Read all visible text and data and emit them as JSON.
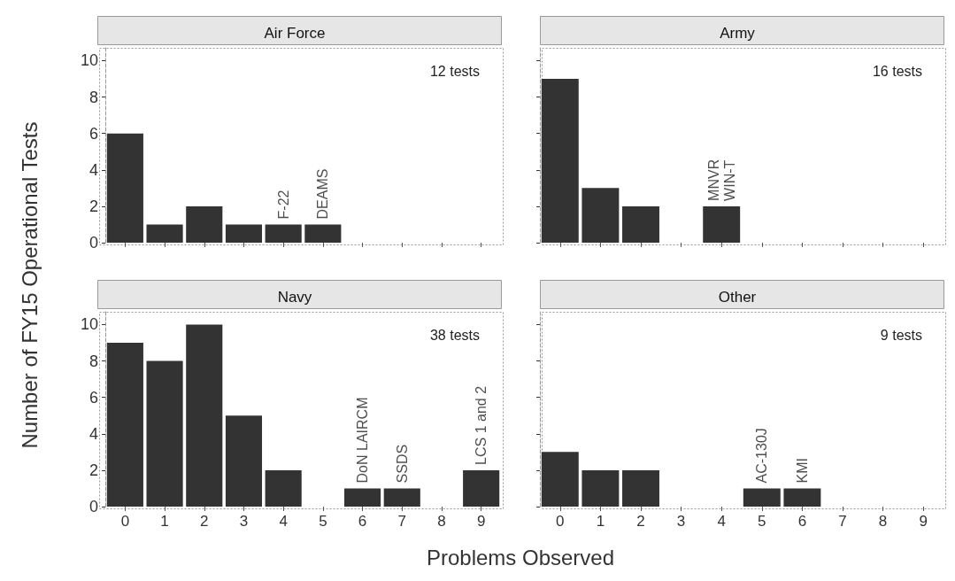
{
  "chart_data": [
    {
      "type": "bar",
      "title": "Air Force",
      "ylabel": "Number of FY15 Operational Tests",
      "categories": [
        "0",
        "1",
        "2",
        "3",
        "4",
        "5",
        "6",
        "7",
        "8",
        "9"
      ],
      "values": [
        6,
        1,
        2,
        1,
        1,
        1,
        0,
        0,
        0,
        0
      ],
      "color": "#333333",
      "ylim": [
        0,
        10.8
      ],
      "yticks": [
        0,
        2,
        4,
        6,
        8,
        10
      ],
      "tick_labels": "y",
      "annotations": [
        "12 tests",
        {
          "text": "F-22",
          "x": "4",
          "y": 1
        },
        {
          "text": "DEAMS",
          "x": "5",
          "y": 1
        }
      ]
    },
    {
      "type": "bar",
      "title": "Army",
      "categories": [
        "0",
        "1",
        "2",
        "3",
        "4",
        "5",
        "6",
        "7",
        "8",
        "9"
      ],
      "values": [
        9,
        3,
        2,
        0,
        2,
        0,
        0,
        0,
        0,
        0
      ],
      "color": "#333333",
      "ylim": [
        0,
        10.8
      ],
      "yticks": [
        0,
        2,
        4,
        6,
        8,
        10
      ],
      "tick_labels": false,
      "annotations": [
        "16 tests",
        {
          "text": "MNVR",
          "x": "4",
          "y": 2
        },
        {
          "text": "WIN-T",
          "x": "4",
          "y": 2
        }
      ]
    },
    {
      "type": "bar",
      "title": "Navy",
      "xlabel": "Problems Observed",
      "categories": [
        "0",
        "1",
        "2",
        "3",
        "4",
        "5",
        "6",
        "7",
        "8",
        "9"
      ],
      "values": [
        9,
        8,
        10,
        5,
        2,
        0,
        1,
        1,
        0,
        2
      ],
      "color": "#333333",
      "ylim": [
        0,
        10.8
      ],
      "yticks": [
        0,
        2,
        4,
        6,
        8,
        10
      ],
      "annotations": [
        "38 tests",
        {
          "text": "DoN LAIRCM",
          "x": "6",
          "y": 1
        },
        {
          "text": "SSDS",
          "x": "7",
          "y": 1
        },
        {
          "text": "LCS 1 and 2",
          "x": "9",
          "y": 2
        }
      ]
    },
    {
      "type": "bar",
      "title": "Other",
      "categories": [
        "0",
        "1",
        "2",
        "3",
        "4",
        "5",
        "6",
        "7",
        "8",
        "9"
      ],
      "values": [
        3,
        2,
        2,
        0,
        0,
        1,
        1,
        0,
        0,
        0
      ],
      "color": "#333333",
      "ylim": [
        0,
        10.8
      ],
      "yticks": [
        0,
        2,
        4,
        6,
        8,
        10
      ],
      "tick_labels": "x",
      "annotations": [
        "9 tests",
        {
          "text": "AC-130J",
          "x": "5",
          "y": 1
        },
        {
          "text": "KMI",
          "x": "6",
          "y": 1
        }
      ]
    }
  ]
}
